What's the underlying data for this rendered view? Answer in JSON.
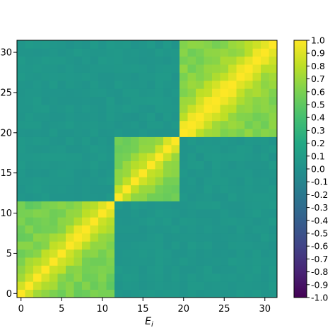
{
  "chart_data": {
    "type": "heatmap",
    "title": "",
    "xlabel": "E_i",
    "ylabel": "",
    "n": 32,
    "blocks": [
      {
        "start": 0,
        "end": 11,
        "value": 0.55
      },
      {
        "start": 12,
        "end": 19,
        "value": 0.5
      },
      {
        "start": 20,
        "end": 31,
        "value": 0.6
      }
    ],
    "diagonal_value": 1.0,
    "off_block_value": 0.05,
    "x_ticks": [
      0,
      5,
      10,
      15,
      20,
      25,
      30
    ],
    "y_ticks": [
      0,
      5,
      10,
      15,
      20,
      25,
      30
    ],
    "colorbar": {
      "min": -1.0,
      "max": 1.0,
      "colormap": "viridis",
      "ticks": [
        "1.0",
        "0.9",
        "0.8",
        "0.7",
        "0.6",
        "0.5",
        "0.4",
        "0.3",
        "0.2",
        "0.1",
        "0.0",
        "-0.1",
        "-0.2",
        "-0.3",
        "-0.4",
        "-0.5",
        "-0.6",
        "-0.7",
        "-0.8",
        "-0.9",
        "-1.0"
      ]
    }
  }
}
